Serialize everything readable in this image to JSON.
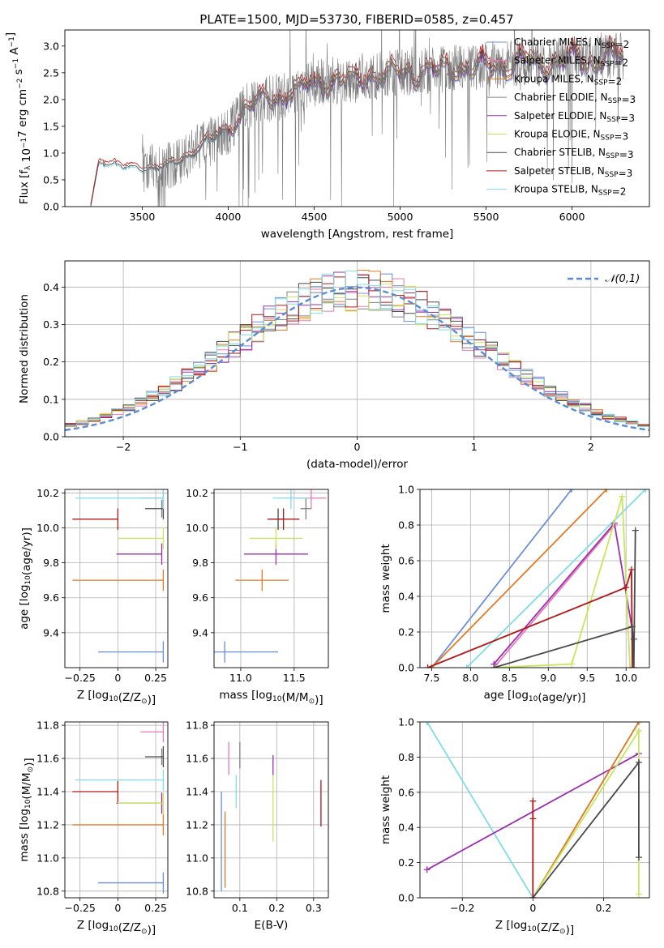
{
  "figure_title": "PLATE=1500, MJD=53730, FIBERID=0585, z=0.457",
  "colors": {
    "Chabrier MILES": "#6a8fd8",
    "Salpeter MILES": "#e87ab7",
    "Kroupa MILES": "#e07b24",
    "Chabrier ELODIE": "#808080",
    "Salpeter ELODIE": "#9b30b0",
    "Kroupa ELODIE": "#c8e65a",
    "Chabrier STELIB": "#4a4a4a",
    "Salpeter STELIB": "#b01818",
    "Kroupa STELIB": "#80dce6"
  },
  "chart_data": [
    {
      "id": "spectrum",
      "type": "line",
      "title": "PLATE=1500, MJD=53730, FIBERID=0585, z=0.457",
      "xlabel": "wavelength [Angstrom, rest frame]",
      "ylabel": "Flux [f_λ 10^-17 erg cm^-2 s^-1 A^-1]",
      "xlim": [
        3050,
        6450
      ],
      "ylim": [
        0,
        3.3
      ],
      "xticks": [
        3500,
        4000,
        4500,
        5000,
        5500,
        6000
      ],
      "yticks": [
        0.0,
        0.5,
        1.0,
        1.5,
        2.0,
        2.5,
        3.0
      ],
      "legend_position": "top-right",
      "legend": [
        "Chabrier MILES, N_SSP=2",
        "Salpeter MILES, N_SSP=2",
        "Kroupa MILES, N_SSP=2",
        "Chabrier ELODIE, N_SSP=3",
        "Salpeter ELODIE, N_SSP=3",
        "Kroupa ELODIE, N_SSP=3",
        "Chabrier STELIB, N_SSP=3",
        "Salpeter STELIB, N_SSP=3",
        "Kroupa STELIB, N_SSP=2"
      ],
      "continuum": {
        "x": [
          3200,
          3250,
          3300,
          3400,
          3500,
          3600,
          3700,
          3800,
          3850,
          3900,
          4000,
          4100,
          4200,
          4300,
          4400,
          4500,
          4600,
          4700,
          4800,
          4900,
          5000,
          5100,
          5200,
          5300,
          5400,
          5500,
          5600,
          5700,
          5800,
          5900,
          6000,
          6100,
          6200,
          6300
        ],
        "y": [
          0.0,
          0.85,
          0.85,
          0.72,
          0.72,
          0.75,
          0.8,
          1.05,
          1.2,
          1.25,
          1.4,
          1.85,
          2.0,
          2.05,
          2.2,
          2.3,
          2.35,
          2.35,
          2.45,
          2.45,
          2.5,
          2.55,
          2.55,
          2.6,
          2.6,
          2.65,
          2.65,
          2.7,
          2.7,
          2.72,
          2.75,
          2.75,
          2.8,
          2.8
        ]
      }
    },
    {
      "id": "residuals",
      "type": "bar",
      "xlabel": "(data-model)/error",
      "ylabel": "Normed distribution",
      "xlim": [
        -2.5,
        2.5
      ],
      "ylim": [
        0,
        0.47
      ],
      "xticks": [
        -2,
        -1,
        0,
        1,
        2
      ],
      "yticks": [
        0.0,
        0.1,
        0.2,
        0.3,
        0.4
      ],
      "legend_position": "top-right",
      "legend": [
        "𝒩(0,1)"
      ],
      "bin_width": 0.1
    },
    {
      "id": "age_vs_Z",
      "type": "scatter",
      "xlabel": "Z [log10(Z/Z⊙)]",
      "ylabel": "age [log10(age/yr)]",
      "xlim": [
        -0.35,
        0.33
      ],
      "ylim": [
        9.2,
        10.22
      ],
      "xticks": [
        -0.25,
        0.0,
        0.25
      ],
      "yticks": [
        9.4,
        9.6,
        9.8,
        10.0,
        10.2
      ],
      "points": [
        {
          "model": "Chabrier MILES",
          "x": 0.3,
          "y": 9.29,
          "xerr": 0.43
        },
        {
          "model": "Salpeter MILES",
          "x": 0.3,
          "y": 10.17,
          "xerr": 0.15
        },
        {
          "model": "Kroupa MILES",
          "x": 0.3,
          "y": 9.7,
          "xerr": 0.6
        },
        {
          "model": "Chabrier ELODIE",
          "x": 0.29,
          "y": 10.11,
          "yerr": 0.05
        },
        {
          "model": "Salpeter ELODIE",
          "x": 0.29,
          "y": 9.85,
          "xerr": 0.3
        },
        {
          "model": "Kroupa ELODIE",
          "x": 0.3,
          "y": 9.94,
          "xerr": 0.3
        },
        {
          "model": "Chabrier STELIB",
          "x": 0.3,
          "y": 10.11,
          "xerr": 0.12
        },
        {
          "model": "Salpeter STELIB",
          "x": 0.0,
          "y": 10.05,
          "xerr": 0.3
        },
        {
          "model": "Kroupa STELIB",
          "x": 0.3,
          "y": 10.17,
          "xerr": 0.58
        }
      ]
    },
    {
      "id": "age_vs_mass",
      "type": "scatter",
      "xlabel": "mass [log10(M/M⊙)]",
      "ylabel": "",
      "xlim": [
        10.75,
        11.82
      ],
      "ylim": [
        9.2,
        10.22
      ],
      "xticks": [
        11.0,
        11.5
      ],
      "yticks": [
        9.4,
        9.6,
        9.8,
        10.0,
        10.2
      ],
      "points": [
        {
          "model": "Chabrier MILES",
          "x": 10.85,
          "y": 9.29,
          "xerr": 0.5
        },
        {
          "model": "Salpeter MILES",
          "x": 11.66,
          "y": 10.17,
          "xerr": 0.14
        },
        {
          "model": "Kroupa MILES",
          "x": 11.2,
          "y": 9.7,
          "xerr": 0.25
        },
        {
          "model": "Chabrier ELODIE",
          "x": 11.61,
          "y": 10.11,
          "xerr": 0.05
        },
        {
          "model": "Salpeter ELODIE",
          "x": 11.33,
          "y": 9.85,
          "xerr": 0.3
        },
        {
          "model": "Kroupa ELODIE",
          "x": 11.33,
          "y": 9.94,
          "xerr": 0.25
        },
        {
          "model": "Chabrier STELIB",
          "x": 11.35,
          "y": 10.05,
          "xerr": 0.03
        },
        {
          "model": "Salpeter STELIB",
          "x": 11.4,
          "y": 10.05,
          "xerr": 0.15
        },
        {
          "model": "Kroupa STELIB",
          "x": 11.47,
          "y": 10.17,
          "xerr": 0.17
        }
      ]
    },
    {
      "id": "weight_vs_age",
      "type": "line",
      "xlabel": "age [log10(age/yr)]",
      "ylabel": "mass weight",
      "xlim": [
        7.35,
        10.3
      ],
      "ylim": [
        0,
        1
      ],
      "xticks": [
        7.5,
        8.0,
        8.5,
        9.0,
        9.5,
        10.0
      ],
      "yticks": [
        0.0,
        0.2,
        0.4,
        0.6,
        0.8,
        1.0
      ],
      "series": [
        {
          "model": "Chabrier MILES",
          "x": [
            7.5,
            9.3
          ],
          "y": [
            0.0,
            1.0
          ]
        },
        {
          "model": "Kroupa MILES",
          "x": [
            7.5,
            9.75
          ],
          "y": [
            0.0,
            1.0
          ]
        },
        {
          "model": "Kroupa STELIB",
          "x": [
            7.95,
            10.25
          ],
          "y": [
            0.0,
            1.0
          ]
        },
        {
          "model": "Salpeter MILES",
          "x": [
            8.3,
            9.85
          ],
          "y": [
            0.0,
            0.8
          ]
        },
        {
          "model": "Salpeter ELODIE",
          "x": [
            8.3,
            9.85,
            10.1
          ],
          "y": [
            0.02,
            0.81,
            0.16
          ]
        },
        {
          "model": "Kroupa ELODIE",
          "x": [
            8.3,
            9.3,
            9.95,
            10.05
          ],
          "y": [
            0.0,
            0.02,
            0.96,
            0.0
          ]
        },
        {
          "model": "Salpeter STELIB",
          "x": [
            7.45,
            10.0,
            10.07,
            10.08
          ],
          "y": [
            0.0,
            0.45,
            0.55,
            0.0
          ]
        },
        {
          "model": "Chabrier STELIB",
          "x": [
            8.3,
            10.08,
            10.1,
            10.12
          ],
          "y": [
            0.0,
            0.23,
            0.0,
            0.77
          ]
        }
      ]
    },
    {
      "id": "mass_vs_Z",
      "type": "scatter",
      "xlabel": "Z [log10(Z/Z⊙)]",
      "ylabel": "mass [log10(M/M⊙)]",
      "xlim": [
        -0.35,
        0.33
      ],
      "ylim": [
        10.76,
        11.82
      ],
      "xticks": [
        -0.25,
        0.0,
        0.25
      ],
      "yticks": [
        10.8,
        11.0,
        11.2,
        11.4,
        11.6,
        11.8
      ],
      "points": [
        {
          "model": "Chabrier MILES",
          "x": 0.3,
          "y": 10.85,
          "xerr": 0.43
        },
        {
          "model": "Salpeter MILES",
          "x": 0.3,
          "y": 11.76,
          "xerr": 0.15
        },
        {
          "model": "Kroupa MILES",
          "x": 0.3,
          "y": 11.2,
          "xerr": 0.6
        },
        {
          "model": "Chabrier ELODIE",
          "x": 0.29,
          "y": 11.61,
          "yerr": 0.05
        },
        {
          "model": "Salpeter ELODIE",
          "x": 0.29,
          "y": 11.33,
          "xerr": 0.3
        },
        {
          "model": "Kroupa ELODIE",
          "x": 0.3,
          "y": 11.33,
          "xerr": 0.3
        },
        {
          "model": "Chabrier STELIB",
          "x": 0.3,
          "y": 11.61,
          "xerr": 0.12
        },
        {
          "model": "Salpeter STELIB",
          "x": 0.0,
          "y": 11.4,
          "xerr": 0.3
        },
        {
          "model": "Kroupa STELIB",
          "x": 0.3,
          "y": 11.47,
          "xerr": 0.58
        }
      ]
    },
    {
      "id": "mass_vs_ebv",
      "type": "scatter",
      "xlabel": "E(B-V)",
      "ylabel": "",
      "xlim": [
        0.03,
        0.34
      ],
      "ylim": [
        10.76,
        11.82
      ],
      "xticks": [
        0.1,
        0.2,
        0.3
      ],
      "yticks": [
        10.8,
        11.0,
        11.2,
        11.4,
        11.6,
        11.8
      ],
      "points": [
        {
          "model": "Chabrier MILES",
          "x": 0.05,
          "y": 11.1,
          "yerr": 0.3
        },
        {
          "model": "Kroupa MILES",
          "x": 0.06,
          "y": 11.05,
          "yerr": 0.23
        },
        {
          "model": "Salpeter MILES",
          "x": 0.07,
          "y": 11.6,
          "yerr": 0.1
        },
        {
          "model": "Kroupa STELIB",
          "x": 0.09,
          "y": 11.4,
          "yerr": 0.1
        },
        {
          "model": "Chabrier ELODIE",
          "x": 0.1,
          "y": 11.62,
          "yerr": 0.08
        },
        {
          "model": "Salpeter ELODIE",
          "x": 0.19,
          "y": 11.56,
          "yerr": 0.06
        },
        {
          "model": "Kroupa ELODIE",
          "x": 0.19,
          "y": 11.3,
          "yerr": 0.2
        },
        {
          "model": "Salpeter STELIB",
          "x": 0.32,
          "y": 11.33,
          "yerr": 0.14
        }
      ]
    },
    {
      "id": "weight_vs_Z",
      "type": "line",
      "xlabel": "Z [log10(Z/Z⊙)]",
      "ylabel": "mass weight",
      "xlim": [
        -0.32,
        0.33
      ],
      "ylim": [
        0,
        1
      ],
      "xticks": [
        -0.2,
        0.0,
        0.2
      ],
      "yticks": [
        0.0,
        0.2,
        0.4,
        0.6,
        0.8,
        1.0
      ],
      "series": [
        {
          "model": "Kroupa STELIB",
          "x": [
            -0.3,
            0.0,
            0.3
          ],
          "y": [
            1.0,
            0.0,
            1.0
          ]
        },
        {
          "model": "Salpeter ELODIE",
          "x": [
            -0.3,
            0.3
          ],
          "y": [
            0.16,
            0.82
          ]
        },
        {
          "model": "Kroupa MILES",
          "x": [
            0.0,
            0.3
          ],
          "y": [
            0.0,
            1.0
          ]
        },
        {
          "model": "Kroupa ELODIE",
          "x": [
            0.0,
            0.3,
            0.3
          ],
          "y": [
            0.0,
            0.95,
            0.02
          ]
        },
        {
          "model": "Chabrier STELIB",
          "x": [
            0.0,
            0.3,
            0.3
          ],
          "y": [
            0.0,
            0.77,
            0.23
          ]
        },
        {
          "model": "Salpeter STELIB",
          "x": [
            0.0,
            0.0,
            0.0
          ],
          "y": [
            0.0,
            0.55,
            0.45
          ]
        }
      ]
    }
  ]
}
